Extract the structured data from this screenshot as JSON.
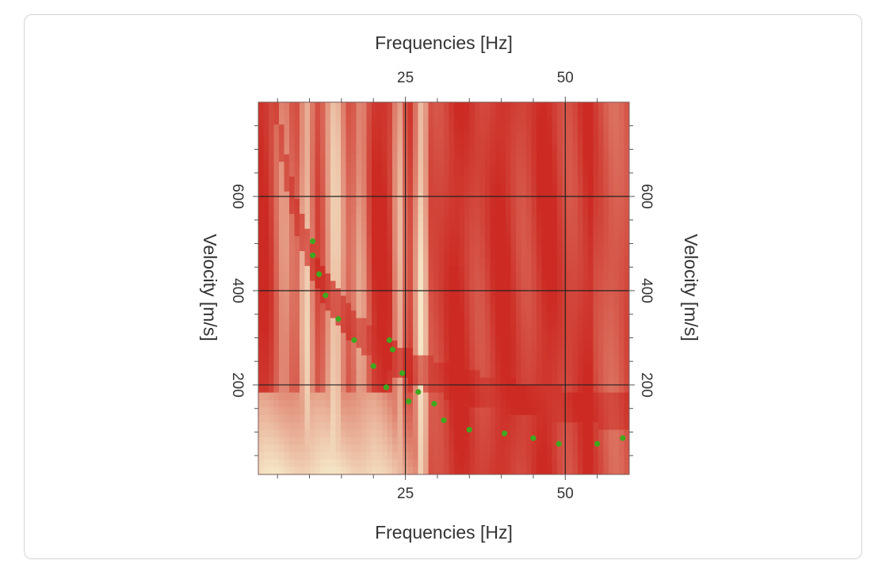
{
  "chart_data": {
    "type": "heatmap",
    "title": "",
    "xlabel": "Frequencies [Hz]",
    "ylabel": "Velocity [m/s]",
    "xlim": [
      2,
      60
    ],
    "ylim": [
      10,
      800
    ],
    "x_ticks": [
      25,
      50
    ],
    "y_ticks": [
      200,
      400,
      600
    ],
    "x_tick_labels": [
      "25",
      "50"
    ],
    "y_tick_labels": [
      "200",
      "400",
      "600"
    ],
    "grid": true,
    "colormap": [
      "#cc2a22",
      "#f7f0cf"
    ],
    "picked_points": {
      "color": "#3fa81e",
      "x": [
        10.5,
        10.5,
        11.5,
        12.5,
        14.5,
        17,
        20,
        22.5,
        23,
        22,
        24.5,
        27,
        29.5,
        25.5,
        31,
        35,
        40.5,
        45,
        49,
        55,
        59
      ],
      "y": [
        505,
        475,
        435,
        390,
        340,
        295,
        240,
        295,
        275,
        195,
        225,
        185,
        160,
        165,
        125,
        105,
        97,
        87,
        75,
        75,
        87
      ]
    }
  }
}
